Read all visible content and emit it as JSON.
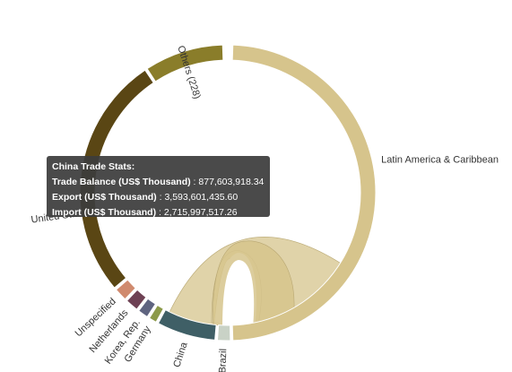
{
  "chart_data": {
    "type": "chord",
    "segments": [
      {
        "name": "Latin America & Caribbean",
        "color": "#d6c48c",
        "label_visible": true
      },
      {
        "name": "Brazil",
        "color": "#c9d2c6",
        "label_visible": true
      },
      {
        "name": "China",
        "color": "#3f5f66",
        "label_visible": true
      },
      {
        "name": "Germany",
        "color": "#8c9a4a",
        "label_visible": true
      },
      {
        "name": "Korea, Rep.",
        "color": "#5f6480",
        "label_visible": true
      },
      {
        "name": "Netherlands",
        "color": "#6e4154",
        "label_visible": true
      },
      {
        "name": "Unspecified",
        "color": "#d08a6e",
        "label_visible": true
      },
      {
        "name": "United States",
        "color": "#5a4614",
        "label_visible": false,
        "visible_fragment": "United Sta"
      },
      {
        "name": "Others (228)",
        "color": "#8a7d2a",
        "label_visible": true
      }
    ],
    "ribbons": [
      {
        "from": "Latin America & Caribbean",
        "to": "China",
        "color": "#d6c48c"
      },
      {
        "from": "Latin America & Caribbean",
        "to": "Latin America & Caribbean",
        "color": "#d6c48c"
      }
    ],
    "tooltip": {
      "title": "China Trade Stats:",
      "rows": [
        {
          "label": "Trade Balance (US$ Thousand)",
          "value": "877,603,918.34"
        },
        {
          "label": "Export (US$ Thousand)",
          "value": "3,593,601,435.60"
        },
        {
          "label": "Import (US$ Thousand)",
          "value": "2,715,997,517.26"
        }
      ]
    }
  }
}
